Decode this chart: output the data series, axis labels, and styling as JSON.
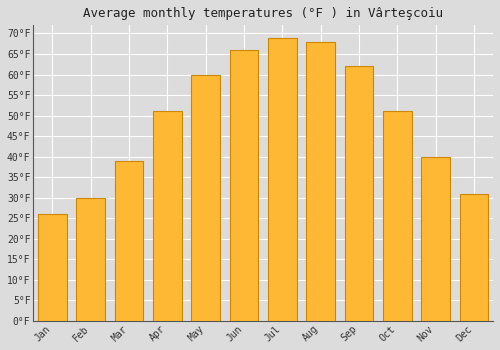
{
  "title": "Average monthly temperatures (°F ) in Vârteşcoiu",
  "months": [
    "Jan",
    "Feb",
    "Mar",
    "Apr",
    "May",
    "Jun",
    "Jul",
    "Aug",
    "Sep",
    "Oct",
    "Nov",
    "Dec"
  ],
  "values": [
    26,
    30,
    39,
    51,
    60,
    66,
    69,
    68,
    62,
    51,
    40,
    31
  ],
  "bar_color": "#FFA500",
  "bar_face_color": "#FFB833",
  "bar_edge_color": "#CC8800",
  "ylim": [
    0,
    72
  ],
  "yticks": [
    0,
    5,
    10,
    15,
    20,
    25,
    30,
    35,
    40,
    45,
    50,
    55,
    60,
    65,
    70
  ],
  "ylabel_suffix": "°F",
  "background_color": "#DCDCDC",
  "plot_bg_color": "#DCDCDC",
  "grid_color": "#FFFFFF",
  "title_fontsize": 9,
  "tick_fontsize": 7,
  "font_family": "monospace"
}
